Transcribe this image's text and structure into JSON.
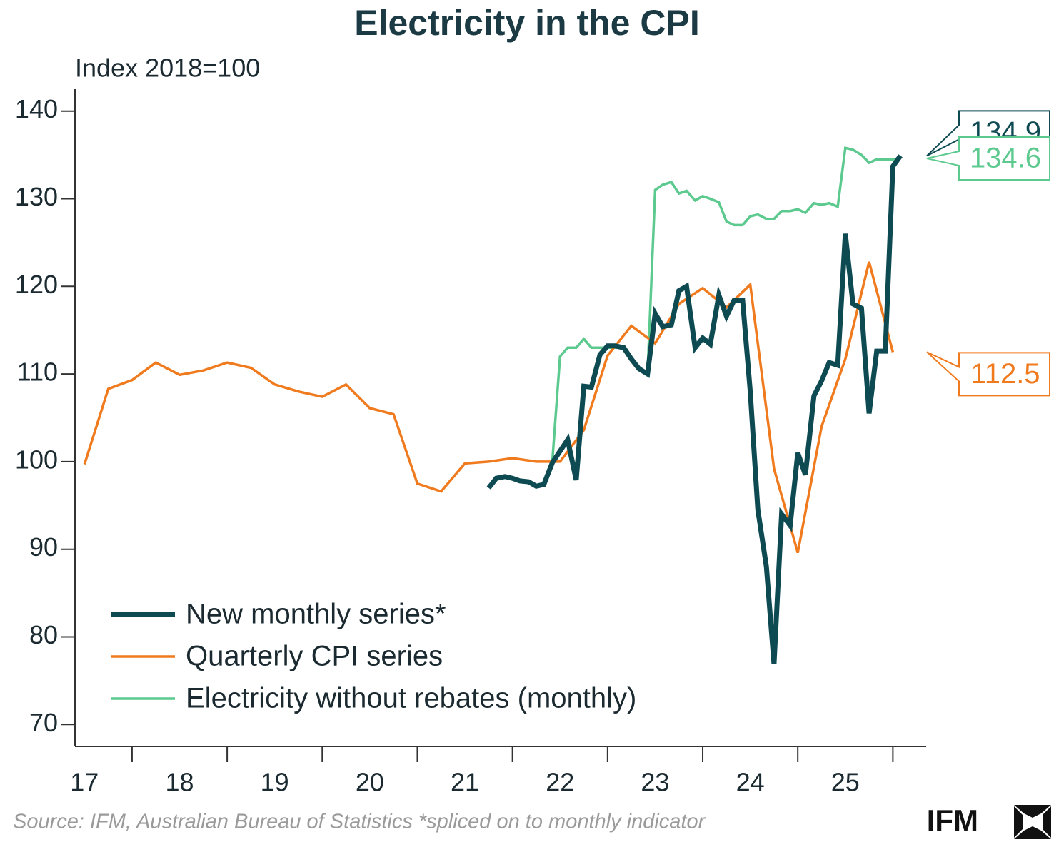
{
  "chart_data": {
    "type": "line",
    "title": "Electricity in the CPI",
    "y_label": "Index 2018=100",
    "source": "Source: IFM, Australian Bureau of Statistics *spliced on to monthly indicator",
    "logo": "IFM",
    "xlim": [
      17.4,
      26.35
    ],
    "ylim": [
      67.5,
      142.5
    ],
    "yticks": [
      70,
      80,
      90,
      100,
      110,
      120,
      130,
      140
    ],
    "xticks": [
      {
        "value": 17.5,
        "label": "17"
      },
      {
        "value": 18.5,
        "label": "18"
      },
      {
        "value": 19.5,
        "label": "19"
      },
      {
        "value": 20.5,
        "label": "20"
      },
      {
        "value": 21.5,
        "label": "21"
      },
      {
        "value": 22.5,
        "label": "22"
      },
      {
        "value": 23.5,
        "label": "23"
      },
      {
        "value": 24.5,
        "label": "24"
      },
      {
        "value": 25.5,
        "label": "25"
      }
    ],
    "xtick_marks": [
      18,
      19,
      20,
      21,
      22,
      23,
      24,
      25,
      26
    ],
    "legend": "lower left",
    "series": [
      {
        "name": "New monthly series*",
        "color": "#0d4a52",
        "width": 7,
        "x": [
          21.75,
          21.83,
          21.92,
          22.0,
          22.08,
          22.17,
          22.25,
          22.33,
          22.42,
          22.5,
          22.58,
          22.67,
          22.75,
          22.83,
          22.92,
          23.0,
          23.08,
          23.17,
          23.25,
          23.33,
          23.42,
          23.5,
          23.58,
          23.67,
          23.75,
          23.83,
          23.92,
          24.0,
          24.08,
          24.17,
          24.25,
          24.33,
          24.42,
          24.5,
          24.58,
          24.67,
          24.75,
          24.83,
          24.92,
          25.0,
          25.08,
          25.17,
          25.25,
          25.33,
          25.42,
          25.5,
          25.58,
          25.67,
          25.75,
          25.83,
          25.92,
          26.0,
          26.08
        ],
        "values": [
          97,
          98.1,
          98.3,
          98.1,
          97.8,
          97.7,
          97.2,
          97.4,
          99.9,
          101.2,
          102.5,
          97.9,
          108.6,
          108.5,
          112.2,
          113.2,
          113.2,
          113,
          111.7,
          110.6,
          110,
          116.9,
          115.4,
          115.6,
          119.5,
          120,
          113,
          114.1,
          113.4,
          119,
          116.6,
          118.4,
          118.4,
          108,
          94.5,
          88,
          76.9,
          94,
          92.7,
          101,
          98.5,
          107.5,
          109.2,
          111.3,
          111,
          126,
          118,
          117.5,
          105.5,
          112.6,
          112.6,
          133.7,
          134.9
        ]
      },
      {
        "name": "Quarterly CPI series",
        "color": "#f07a1e",
        "width": 3.5,
        "x": [
          17.5,
          17.75,
          18,
          18.25,
          18.5,
          18.75,
          19,
          19.25,
          19.5,
          19.75,
          20,
          20.25,
          20.5,
          20.75,
          21,
          21.25,
          21.5,
          21.75,
          22,
          22.25,
          22.5,
          22.75,
          23,
          23.25,
          23.5,
          23.75,
          24,
          24.25,
          24.5,
          24.75,
          25,
          25.25,
          25.5,
          25.75,
          26
        ],
        "values": [
          99.7,
          108.3,
          109.3,
          111.3,
          109.9,
          110.4,
          111.3,
          110.7,
          108.8,
          108,
          107.4,
          108.8,
          106.1,
          105.4,
          97.5,
          96.6,
          99.8,
          100,
          100.4,
          100,
          100,
          103.6,
          112.1,
          115.5,
          113.5,
          118,
          119.8,
          117.6,
          120.2,
          99.2,
          89.6,
          104,
          111.7,
          122.8,
          112.5
        ]
      },
      {
        "name": "Electricity without rebates (monthly)",
        "color": "#5cc98f",
        "width": 3.5,
        "x": [
          22.42,
          22.5,
          22.58,
          22.67,
          22.75,
          22.83,
          22.92,
          23.0,
          23.08,
          23.17,
          23.25,
          23.33,
          23.42,
          23.5,
          23.58,
          23.67,
          23.75,
          23.83,
          23.92,
          24.0,
          24.08,
          24.17,
          24.25,
          24.33,
          24.42,
          24.5,
          24.58,
          24.67,
          24.75,
          24.83,
          24.92,
          25.0,
          25.08,
          25.17,
          25.25,
          25.33,
          25.42,
          25.5,
          25.58,
          25.67,
          25.75,
          25.83,
          25.92,
          26.0,
          26.08
        ],
        "values": [
          100.2,
          112,
          113,
          113,
          114,
          113,
          113,
          113,
          113,
          113,
          111.5,
          110.5,
          110,
          131,
          131.6,
          131.9,
          130.6,
          130.9,
          129.8,
          130.3,
          130,
          129.6,
          127.4,
          127,
          127,
          128,
          128.2,
          127.7,
          127.7,
          128.6,
          128.6,
          128.8,
          128.4,
          129.5,
          129.3,
          129.5,
          129.1,
          135.8,
          135.6,
          135,
          134.1,
          134.5,
          134.5,
          134.5,
          134.6
        ]
      }
    ]
  }
}
